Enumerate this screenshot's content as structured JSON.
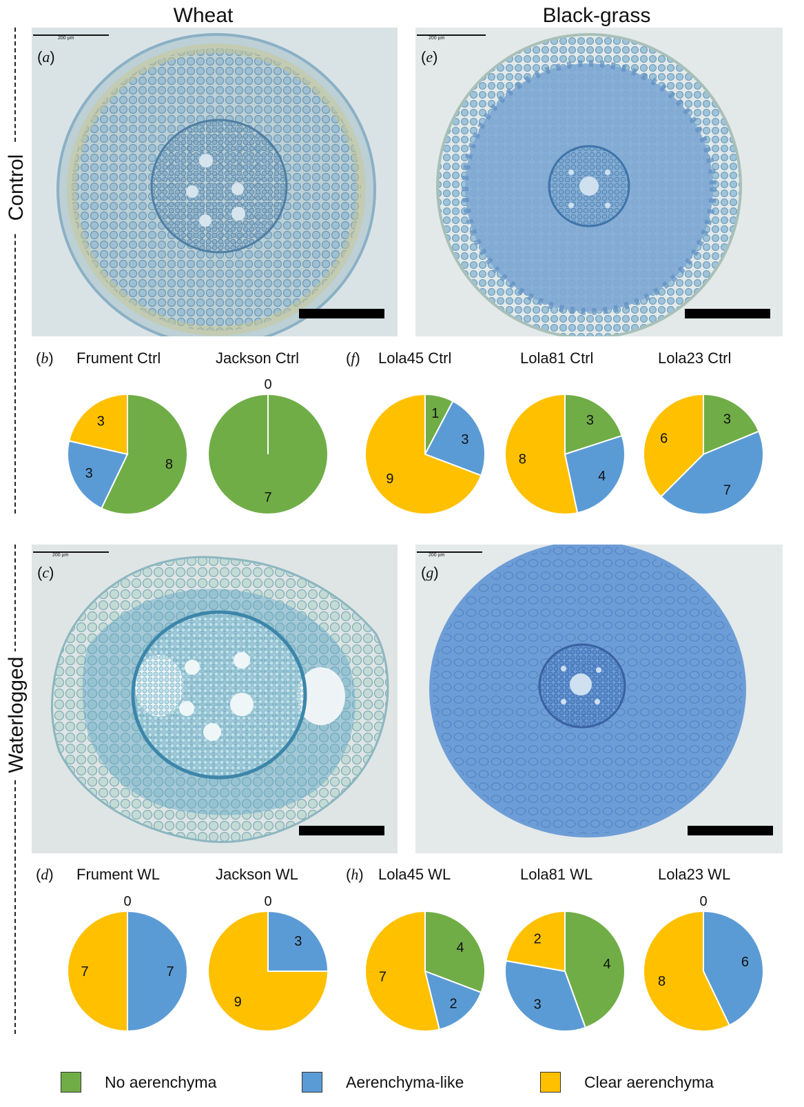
{
  "columns": {
    "wheat": "Wheat",
    "blackgrass": "Black-grass"
  },
  "rows": {
    "control": "Control",
    "waterlogged": "Waterlogged"
  },
  "photos": {
    "a": {
      "letter": "a",
      "scale_text": "200 µm"
    },
    "e": {
      "letter": "e",
      "scale_text": "200 µm"
    },
    "c": {
      "letter": "c",
      "scale_text": "200 µm"
    },
    "g": {
      "letter": "g",
      "scale_text": "200 µm"
    }
  },
  "pie_panels": {
    "b": {
      "letter": "b"
    },
    "f": {
      "letter": "f"
    },
    "d": {
      "letter": "d"
    },
    "h": {
      "letter": "h"
    }
  },
  "legend": {
    "no": {
      "label": "No aerenchyma",
      "color": "#70AD47"
    },
    "like": {
      "label": "Aerenchyma-like",
      "color": "#5B9BD5"
    },
    "clear": {
      "label": "Clear aerenchyma",
      "color": "#FFC000"
    }
  },
  "chart_data": [
    {
      "type": "pie",
      "title": "Frument Ctrl",
      "categories": [
        "No aerenchyma",
        "Aerenchyma-like",
        "Clear aerenchyma"
      ],
      "values": [
        8,
        3,
        3
      ]
    },
    {
      "type": "pie",
      "title": "Jackson Ctrl",
      "categories": [
        "No aerenchyma",
        "Aerenchyma-like",
        "Clear aerenchyma"
      ],
      "values": [
        7,
        0,
        0
      ],
      "zero_label": "0"
    },
    {
      "type": "pie",
      "title": "Lola45 Ctrl",
      "categories": [
        "No aerenchyma",
        "Aerenchyma-like",
        "Clear aerenchyma"
      ],
      "values": [
        1,
        3,
        9
      ]
    },
    {
      "type": "pie",
      "title": "Lola81 Ctrl",
      "categories": [
        "No aerenchyma",
        "Aerenchyma-like",
        "Clear aerenchyma"
      ],
      "values": [
        3,
        4,
        8
      ]
    },
    {
      "type": "pie",
      "title": "Lola23 Ctrl",
      "categories": [
        "No aerenchyma",
        "Aerenchyma-like",
        "Clear aerenchyma"
      ],
      "values": [
        3,
        7,
        6
      ]
    },
    {
      "type": "pie",
      "title": "Frument WL",
      "categories": [
        "No aerenchyma",
        "Aerenchyma-like",
        "Clear aerenchyma"
      ],
      "values": [
        0,
        7,
        7
      ],
      "zero_label": "0"
    },
    {
      "type": "pie",
      "title": "Jackson WL",
      "categories": [
        "No aerenchyma",
        "Aerenchyma-like",
        "Clear aerenchyma"
      ],
      "values": [
        0,
        3,
        9
      ],
      "zero_label": "0"
    },
    {
      "type": "pie",
      "title": "Lola45 WL",
      "categories": [
        "No aerenchyma",
        "Aerenchyma-like",
        "Clear aerenchyma"
      ],
      "values": [
        4,
        2,
        7
      ]
    },
    {
      "type": "pie",
      "title": "Lola81 WL",
      "categories": [
        "No aerenchyma",
        "Aerenchyma-like",
        "Clear aerenchyma"
      ],
      "values": [
        4,
        3,
        2
      ]
    },
    {
      "type": "pie",
      "title": "Lola23 WL",
      "categories": [
        "No aerenchyma",
        "Aerenchyma-like",
        "Clear aerenchyma"
      ],
      "values": [
        0,
        6,
        8
      ],
      "zero_label": "0"
    }
  ]
}
